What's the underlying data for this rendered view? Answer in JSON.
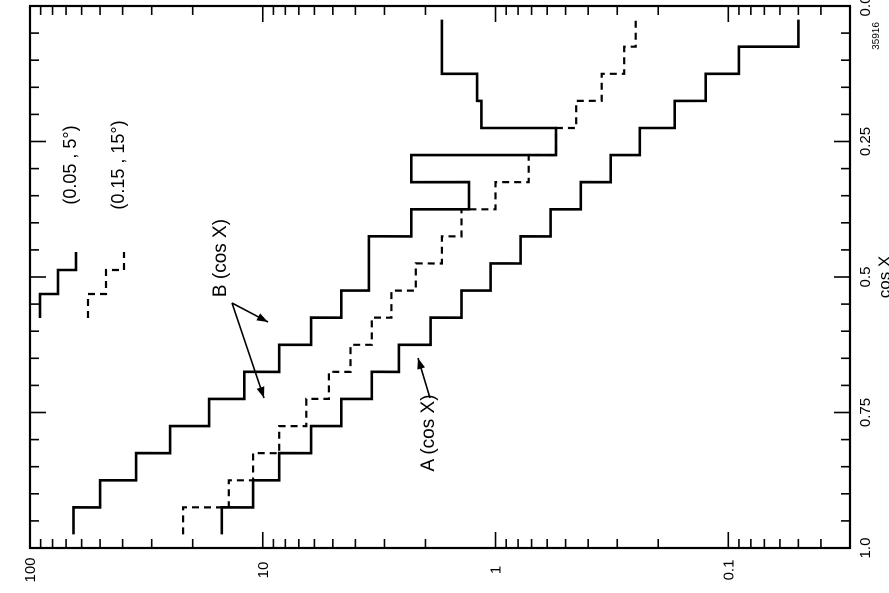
{
  "chart_data": {
    "type": "line",
    "orientation": "rotated-90-ccw",
    "xlabel": "cos X",
    "x_ticks": [
      "0.0",
      "0.25",
      "0.5",
      "0.75",
      "1.0"
    ],
    "xlim": [
      0.0,
      1.0
    ],
    "y_scale": "log",
    "ylim": [
      0.03,
      100
    ],
    "y_ticks": [
      "100",
      "10",
      "1",
      "0.1"
    ],
    "figure_id": "35916",
    "legend": [
      {
        "symbol": "solid-step",
        "label": "(0.05 , 5°)"
      },
      {
        "symbol": "dashed-step",
        "label": "(0.15 , 15°)"
      }
    ],
    "annotations": {
      "b_label": "B (cos X)",
      "a_label": "A (cos X)"
    },
    "series": [
      {
        "name": "A (cos X)",
        "style": "solid",
        "x": [
          0.95,
          0.9,
          0.85,
          0.8,
          0.75,
          0.7,
          0.65,
          0.6,
          0.55,
          0.5,
          0.45,
          0.4,
          0.35,
          0.3,
          0.25,
          0.2,
          0.15,
          0.1,
          0.05
        ],
        "y": [
          15,
          11,
          8.5,
          6.2,
          4.6,
          3.4,
          2.6,
          1.9,
          1.4,
          1.05,
          0.78,
          0.58,
          0.43,
          0.32,
          0.24,
          0.17,
          0.125,
          0.09,
          0.05
        ]
      },
      {
        "name": "B (cos X) (0.05, 5°)",
        "style": "solid",
        "x": [
          0.95,
          0.9,
          0.85,
          0.8,
          0.75,
          0.7,
          0.65,
          0.6,
          0.55,
          0.5,
          0.45,
          0.4,
          0.35,
          0.3,
          0.25,
          0.2,
          0.15,
          0.1,
          0.05
        ],
        "y": [
          65,
          50,
          35,
          25,
          17,
          12,
          8.5,
          6.2,
          4.6,
          3.5,
          3.5,
          2.3,
          1.3,
          2.3,
          0.55,
          1.15,
          1.2,
          1.7,
          1.7
        ]
      },
      {
        "name": "B (cos X) (0.15, 15°)",
        "style": "dashed",
        "x": [
          0.95,
          0.9,
          0.85,
          0.8,
          0.75,
          0.7,
          0.65,
          0.6,
          0.55,
          0.5,
          0.45,
          0.4,
          0.35,
          0.3,
          0.25,
          0.2,
          0.15,
          0.1,
          0.05
        ],
        "y": [
          22,
          14,
          11,
          8.5,
          6.5,
          5.2,
          4.2,
          3.4,
          2.8,
          2.2,
          1.7,
          1.4,
          1.0,
          0.72,
          0.55,
          0.45,
          0.35,
          0.28,
          0.25
        ]
      }
    ]
  }
}
